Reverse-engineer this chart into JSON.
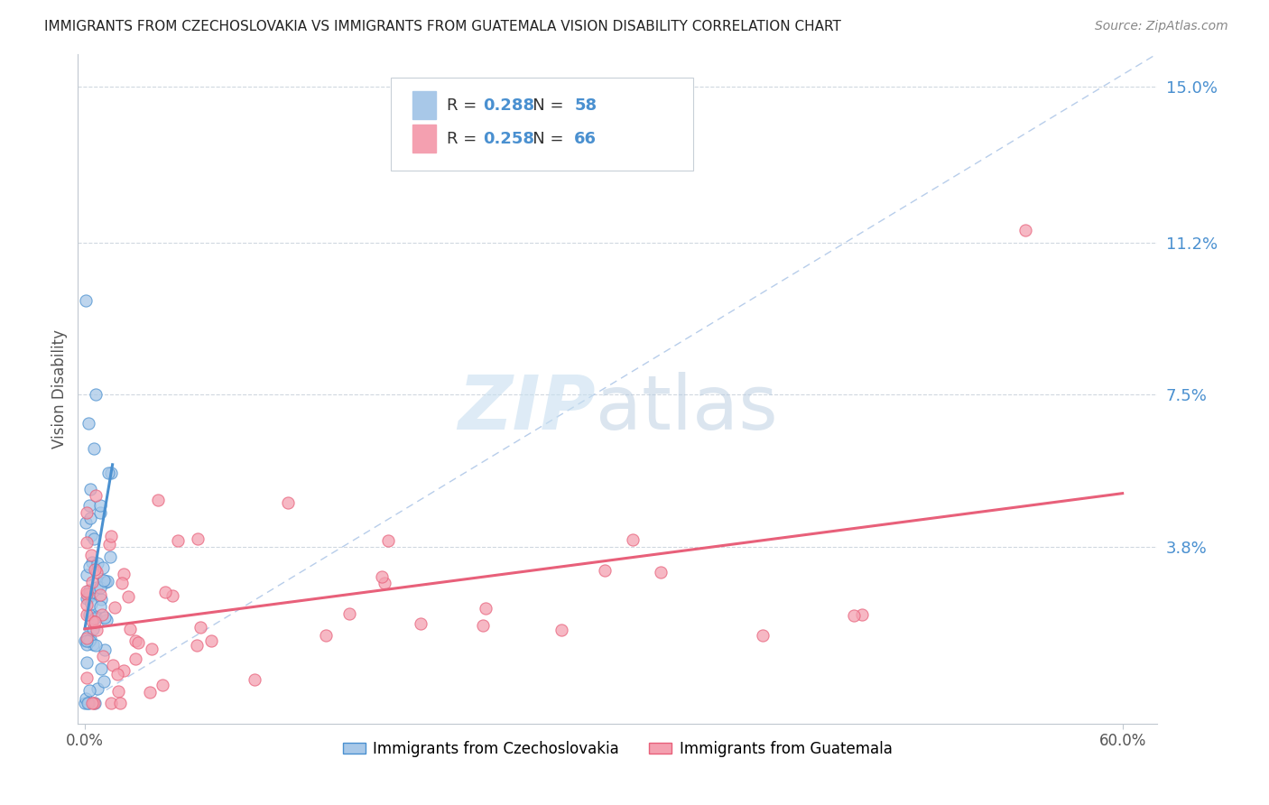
{
  "title": "IMMIGRANTS FROM CZECHOSLOVAKIA VS IMMIGRANTS FROM GUATEMALA VISION DISABILITY CORRELATION CHART",
  "source": "Source: ZipAtlas.com",
  "ylabel": "Vision Disability",
  "color_blue": "#a8c8e8",
  "color_pink": "#f4a0b0",
  "color_blue_dark": "#4a90d0",
  "color_pink_dark": "#e8607a",
  "color_legend_text": "#4a90d0",
  "color_diag": "#b0c8e8",
  "R1": "0.288",
  "N1": "58",
  "R2": "0.258",
  "N2": "66",
  "legend_label_1": "Immigrants from Czechoslovakia",
  "legend_label_2": "Immigrants from Guatemala",
  "xmax": 0.62,
  "ymin": -0.005,
  "ymax": 0.158,
  "ytick_vals": [
    0.038,
    0.075,
    0.112,
    0.15
  ],
  "ytick_labels": [
    "3.8%",
    "7.5%",
    "11.2%",
    "15.0%"
  ],
  "watermark_zip_color": "#c8dff0",
  "watermark_atlas_color": "#b8cce0"
}
